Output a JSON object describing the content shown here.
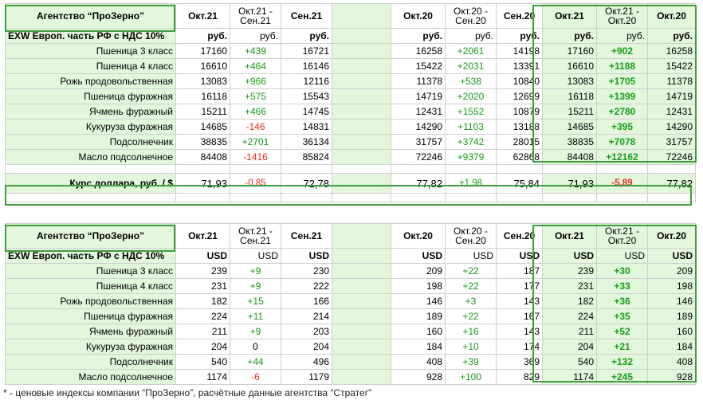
{
  "rub_table": {
    "title": "Агентство “ПроЗерно”",
    "headers": [
      "Окт.21",
      "Окт.21 - Сен.21",
      "Сен.21",
      "",
      "Окт.20",
      "Окт.20 - Сен.20",
      "Сен.20",
      "Окт.21",
      "Окт.21 - Окт.20",
      "Окт.20"
    ],
    "unit_label": "EXW Европ. часть РФ с НДС 10%",
    "units": [
      "руб.",
      "руб.",
      "руб.",
      "",
      "руб.",
      "руб.",
      "руб.",
      "руб.",
      "руб.",
      "руб."
    ],
    "rows": [
      {
        "label": "Пшеница 3 класс",
        "v": [
          "17160",
          "+439",
          "16721",
          "16258",
          "+2061",
          "14198",
          "17160",
          "+902",
          "16258"
        ]
      },
      {
        "label": "Пшеница 4 класс",
        "v": [
          "16610",
          "+464",
          "16146",
          "15422",
          "+2031",
          "13391",
          "16610",
          "+1188",
          "15422"
        ]
      },
      {
        "label": "Рожь продовольственная",
        "v": [
          "13083",
          "+966",
          "12116",
          "11378",
          "+538",
          "10840",
          "13083",
          "+1705",
          "11378"
        ]
      },
      {
        "label": "Пшеница фуражная",
        "v": [
          "16118",
          "+575",
          "15543",
          "14719",
          "+2020",
          "12699",
          "16118",
          "+1399",
          "14719"
        ]
      },
      {
        "label": "Ячмень фуражный",
        "v": [
          "15211",
          "+466",
          "14745",
          "12431",
          "+1552",
          "10879",
          "15211",
          "+2780",
          "12431"
        ]
      },
      {
        "label": "Кукуруза фуражная",
        "v": [
          "14685",
          "-146",
          "14831",
          "14290",
          "+1103",
          "13188",
          "14685",
          "+395",
          "14290"
        ]
      },
      {
        "label": "Подсолнечник",
        "v": [
          "38835",
          "+2701",
          "36134",
          "31757",
          "+3742",
          "28015",
          "38835",
          "+7078",
          "31757"
        ]
      },
      {
        "label": "Масло подсолнечное",
        "v": [
          "84408",
          "-1416",
          "85824",
          "72246",
          "+9379",
          "62868",
          "84408",
          "+12162",
          "72246"
        ]
      }
    ]
  },
  "usd_rate": {
    "label": "Курс доллара, руб. / $",
    "v": [
      "71,93",
      "-0,85",
      "72,78",
      "77,82",
      "+1,98",
      "75,84",
      "71,93",
      "-5,89",
      "77,82"
    ]
  },
  "usd_table": {
    "title": "Агентство “ПроЗерно”",
    "headers": [
      "Окт.21",
      "Окт.21 - Сен.21",
      "Сен.21",
      "",
      "Окт.20",
      "Окт.20 - Сен.20",
      "Сен.20",
      "Окт.21",
      "Окт.21 - Окт.20",
      "Окт.20"
    ],
    "unit_label": "EXW Европ. часть РФ с НДС 10%",
    "units": [
      "USD",
      "USD",
      "USD",
      "",
      "USD",
      "USD",
      "USD",
      "USD",
      "USD",
      "USD"
    ],
    "rows": [
      {
        "label": "Пшеница 3 класс",
        "v": [
          "239",
          "+9",
          "230",
          "209",
          "+22",
          "187",
          "239",
          "+30",
          "209"
        ]
      },
      {
        "label": "Пшеница 4 класс",
        "v": [
          "231",
          "+9",
          "222",
          "198",
          "+22",
          "177",
          "231",
          "+33",
          "198"
        ]
      },
      {
        "label": "Рожь продовольственная",
        "v": [
          "182",
          "+15",
          "166",
          "146",
          "+3",
          "143",
          "182",
          "+36",
          "146"
        ]
      },
      {
        "label": "Пшеница фуражная",
        "v": [
          "224",
          "+11",
          "214",
          "189",
          "+22",
          "167",
          "224",
          "+35",
          "189"
        ]
      },
      {
        "label": "Ячмень фуражный",
        "v": [
          "211",
          "+9",
          "203",
          "160",
          "+16",
          "143",
          "211",
          "+52",
          "160"
        ]
      },
      {
        "label": "Кукуруза фуражная",
        "v": [
          "204",
          "0",
          "204",
          "184",
          "+10",
          "174",
          "204",
          "+21",
          "184"
        ]
      },
      {
        "label": "Подсолнечник",
        "v": [
          "540",
          "+44",
          "496",
          "408",
          "+39",
          "369",
          "540",
          "+132",
          "408"
        ]
      },
      {
        "label": "Масло подсолнечное",
        "v": [
          "1174",
          "-6",
          "1179",
          "928",
          "+100",
          "829",
          "1174",
          "+245",
          "928"
        ]
      }
    ]
  },
  "footnote": "* - ценовые индексы компании “ПроЗерно”, расчётные данные агентства “Стратег”",
  "colors": {
    "accent_green": "#3f9d3f",
    "cell_green": "#e2f7dc",
    "positive": "#1a9a1a",
    "negative": "#e0301e"
  }
}
